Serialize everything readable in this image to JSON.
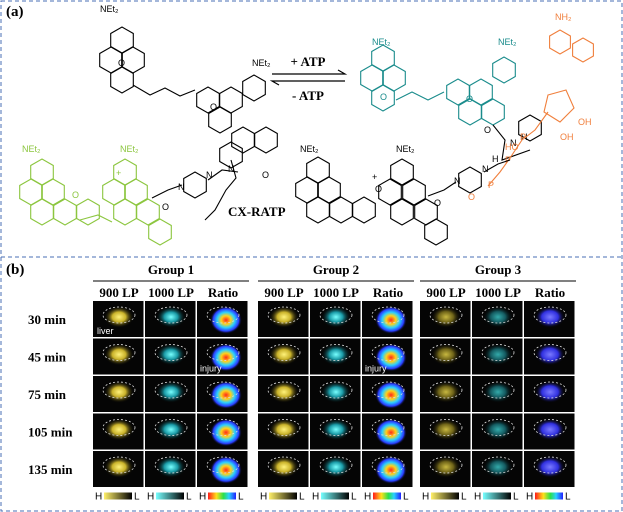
{
  "panel_a": {
    "label": "(a)",
    "forward": "+ ATP",
    "reverse": "- ATP",
    "probe_name": "CX-RATP",
    "atom_labels": {
      "net2": "NEt₂",
      "o": "O",
      "n": "N",
      "h": "H",
      "nh2": "NH₂",
      "oh": "OH",
      "ho": "HO",
      "p": "P",
      "plus": "+"
    }
  },
  "panel_b": {
    "label": "(b)",
    "groups": [
      {
        "title": "Group 1",
        "columns": [
          "900 LP",
          "1000 LP",
          "Ratio"
        ]
      },
      {
        "title": "Group 2",
        "columns": [
          "900 LP",
          "1000 LP",
          "Ratio"
        ]
      },
      {
        "title": "Group 3",
        "columns": [
          "900 LP",
          "1000 LP",
          "Ratio"
        ]
      }
    ],
    "times": [
      "30 min",
      "45 min",
      "75 min",
      "105 min",
      "135 min"
    ],
    "liver_label": "liver",
    "injury_label": "injury",
    "colorbar": {
      "high": "H",
      "low": "L"
    }
  }
}
